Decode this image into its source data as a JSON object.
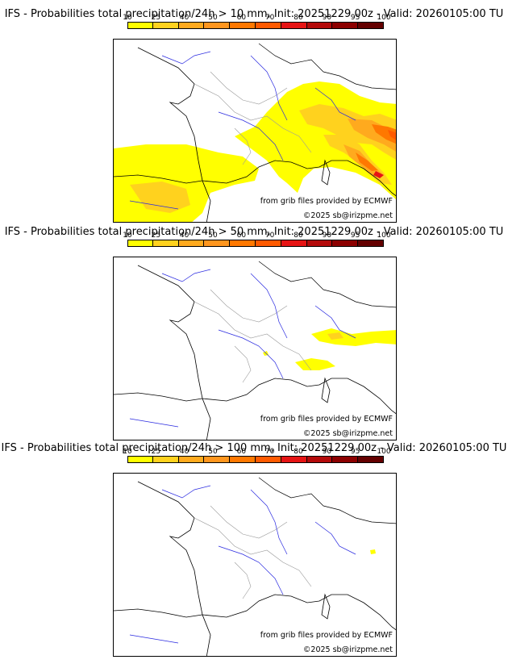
{
  "colorbar": {
    "labels": [
      "10",
      "25",
      "40",
      "50",
      "60",
      "70",
      "80",
      "90",
      "95",
      "100"
    ],
    "colors": [
      "#ffff00",
      "#ffd21e",
      "#ffaa1e",
      "#ff961e",
      "#ff7800",
      "#ff5a00",
      "#e61414",
      "#b40a0a",
      "#8c0000",
      "#640000"
    ]
  },
  "panels": [
    {
      "title": "IFS - Probabilities total precipitation/24h > 10 mm, Init: 20251229 00z - Valid: 20260105:00 TU",
      "credit_source": "from grib files provided by ECMWF",
      "credit_copy": "©2025 sb@irizpme.net"
    },
    {
      "title": "IFS - Probabilities total precipitation/24h > 50 mm, Init: 20251229 00z - Valid: 20260105:00 TU",
      "credit_source": "from grib files provided by ECMWF",
      "credit_copy": "©2025 sb@irizpme.net"
    },
    {
      "title": "IFS - Probabilities total precipitation/24h > 100 mm, Init: 20251229 00z - Valid: 20260105:00 TU",
      "credit_source": "from grib files provided by ECMWF",
      "credit_copy": "©2025 sb@irizpme.net"
    }
  ],
  "style": {
    "coast_color": "#000000",
    "river_color": "#2a2ae0",
    "border_color": "#9a9a9a"
  }
}
